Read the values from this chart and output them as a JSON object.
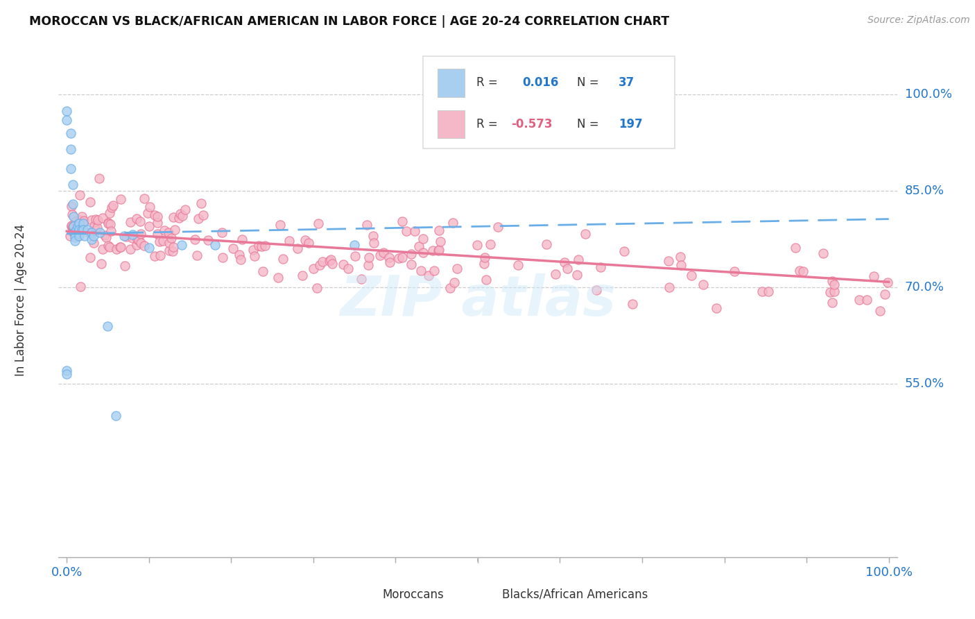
{
  "title": "MOROCCAN VS BLACK/AFRICAN AMERICAN IN LABOR FORCE | AGE 20-24 CORRELATION CHART",
  "source": "Source: ZipAtlas.com",
  "ylabel": "In Labor Force | Age 20-24",
  "moroccan_color": "#a8cff0",
  "moroccan_edge": "#6aaee8",
  "black_color": "#f5b8c8",
  "black_edge": "#e87898",
  "trend_blue": "#6aaee8",
  "trend_pink": "#e87898",
  "R_moroccan": 0.016,
  "N_moroccan": 37,
  "R_black": -0.573,
  "N_black": 197,
  "legend_box_blue": "#a8cff0",
  "legend_box_pink": "#f5b8c8",
  "blue_text_color": "#2277cc",
  "pink_text_color": "#e06080",
  "ytick_vals": [
    0.55,
    0.7,
    0.85,
    1.0
  ],
  "ytick_labels": [
    "55.0%",
    "70.0%",
    "85.0%",
    "100.0%"
  ],
  "xlim": [
    -0.01,
    1.01
  ],
  "ylim": [
    0.28,
    1.08
  ]
}
